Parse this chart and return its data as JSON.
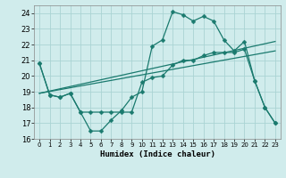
{
  "xlabel": "Humidex (Indice chaleur)",
  "background_color": "#d0ecec",
  "line_color": "#1a7a6e",
  "xlim": [
    -0.5,
    23.5
  ],
  "ylim": [
    16,
    24.5
  ],
  "yticks": [
    16,
    17,
    18,
    19,
    20,
    21,
    22,
    23,
    24
  ],
  "xticks": [
    0,
    1,
    2,
    3,
    4,
    5,
    6,
    7,
    8,
    9,
    10,
    11,
    12,
    13,
    14,
    15,
    16,
    17,
    18,
    19,
    20,
    21,
    22,
    23
  ],
  "series1_x": [
    0,
    1,
    2,
    3,
    4,
    5,
    6,
    7,
    8,
    9,
    10,
    11,
    12,
    13,
    14,
    15,
    16,
    17,
    18,
    19,
    20,
    21,
    22,
    23
  ],
  "series1_y": [
    20.8,
    18.8,
    18.65,
    18.9,
    17.7,
    16.5,
    16.5,
    17.2,
    17.8,
    18.65,
    19.0,
    21.9,
    22.3,
    24.1,
    23.9,
    23.5,
    23.8,
    23.5,
    22.3,
    21.6,
    22.2,
    19.7,
    18.0,
    17.0
  ],
  "series2_x": [
    0,
    1,
    2,
    3,
    4,
    5,
    6,
    7,
    8,
    9,
    10,
    11,
    12,
    13,
    14,
    15,
    16,
    17,
    18,
    19,
    20,
    21,
    22,
    23
  ],
  "series2_y": [
    20.8,
    18.8,
    18.65,
    18.9,
    17.7,
    17.7,
    17.7,
    17.7,
    17.7,
    17.7,
    19.6,
    19.9,
    20.0,
    20.7,
    21.0,
    21.0,
    21.3,
    21.5,
    21.5,
    21.5,
    21.7,
    19.7,
    18.0,
    17.0
  ],
  "series3_x": [
    0,
    23
  ],
  "series3_y": [
    18.9,
    22.2
  ],
  "series4_x": [
    0,
    23
  ],
  "series4_y": [
    18.9,
    21.6
  ],
  "markersize": 2.5
}
